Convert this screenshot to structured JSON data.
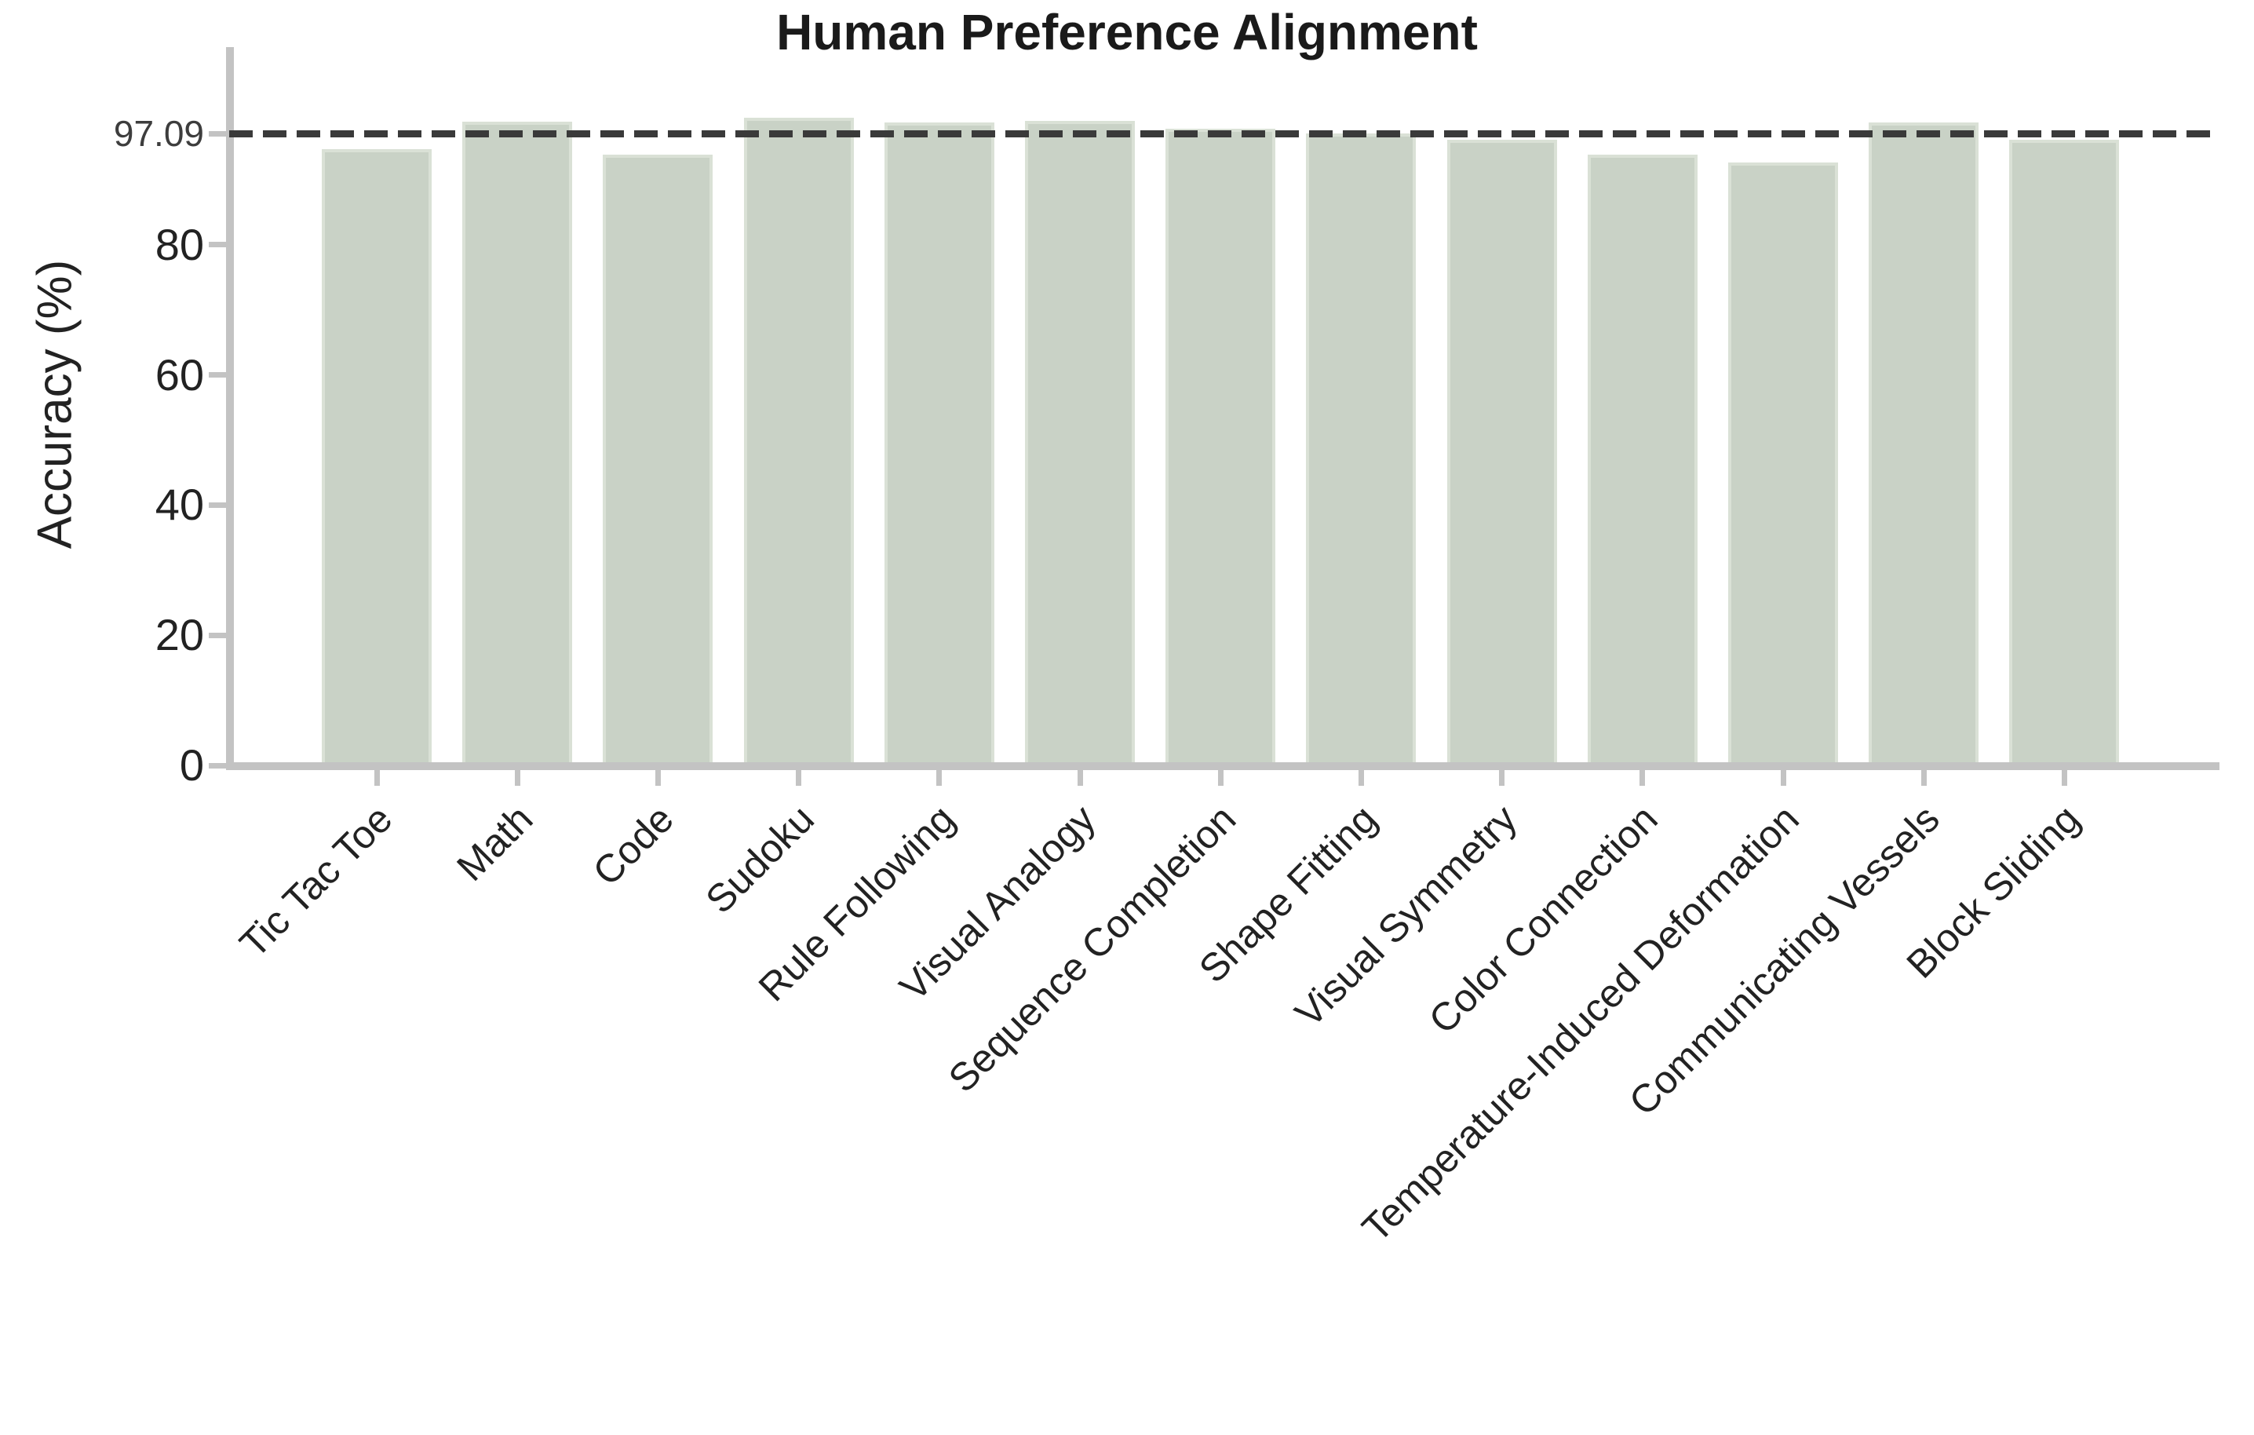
{
  "chart_data": {
    "type": "bar",
    "title": "Human Preference Alignment",
    "ylabel": "Accuracy (%)",
    "xlabel": "",
    "categories": [
      "Tic Tac Toe",
      "Math",
      "Code",
      "Sudoku",
      "Rule Following",
      "Visual Analogy",
      "Sequence Completion",
      "Shape Fitting",
      "Visual Symmetry",
      "Color Connection",
      "Temperature-Induced Deformation",
      "Communicating Vessels",
      "Block Sliding"
    ],
    "values": [
      94.7,
      98.9,
      93.8,
      99.5,
      98.8,
      99.0,
      97.8,
      97.1,
      96.2,
      93.8,
      92.7,
      98.8,
      96.2
    ],
    "yticks": [
      0,
      20,
      40,
      60,
      80
    ],
    "ylim": [
      0,
      110
    ],
    "grid": false,
    "legend": "none",
    "reference_line": {
      "value": 97.09,
      "label": "97.09",
      "style": "dashed"
    },
    "colors": {
      "bar_fill": "#c9d2c6",
      "bar_edge": "#dae1d6",
      "reference_line": "#3a3a3a",
      "axis": "#c3c3c3",
      "tick_label": "#222222",
      "reference_label": "#3d3d3d",
      "title": "#1a1a1a"
    }
  }
}
